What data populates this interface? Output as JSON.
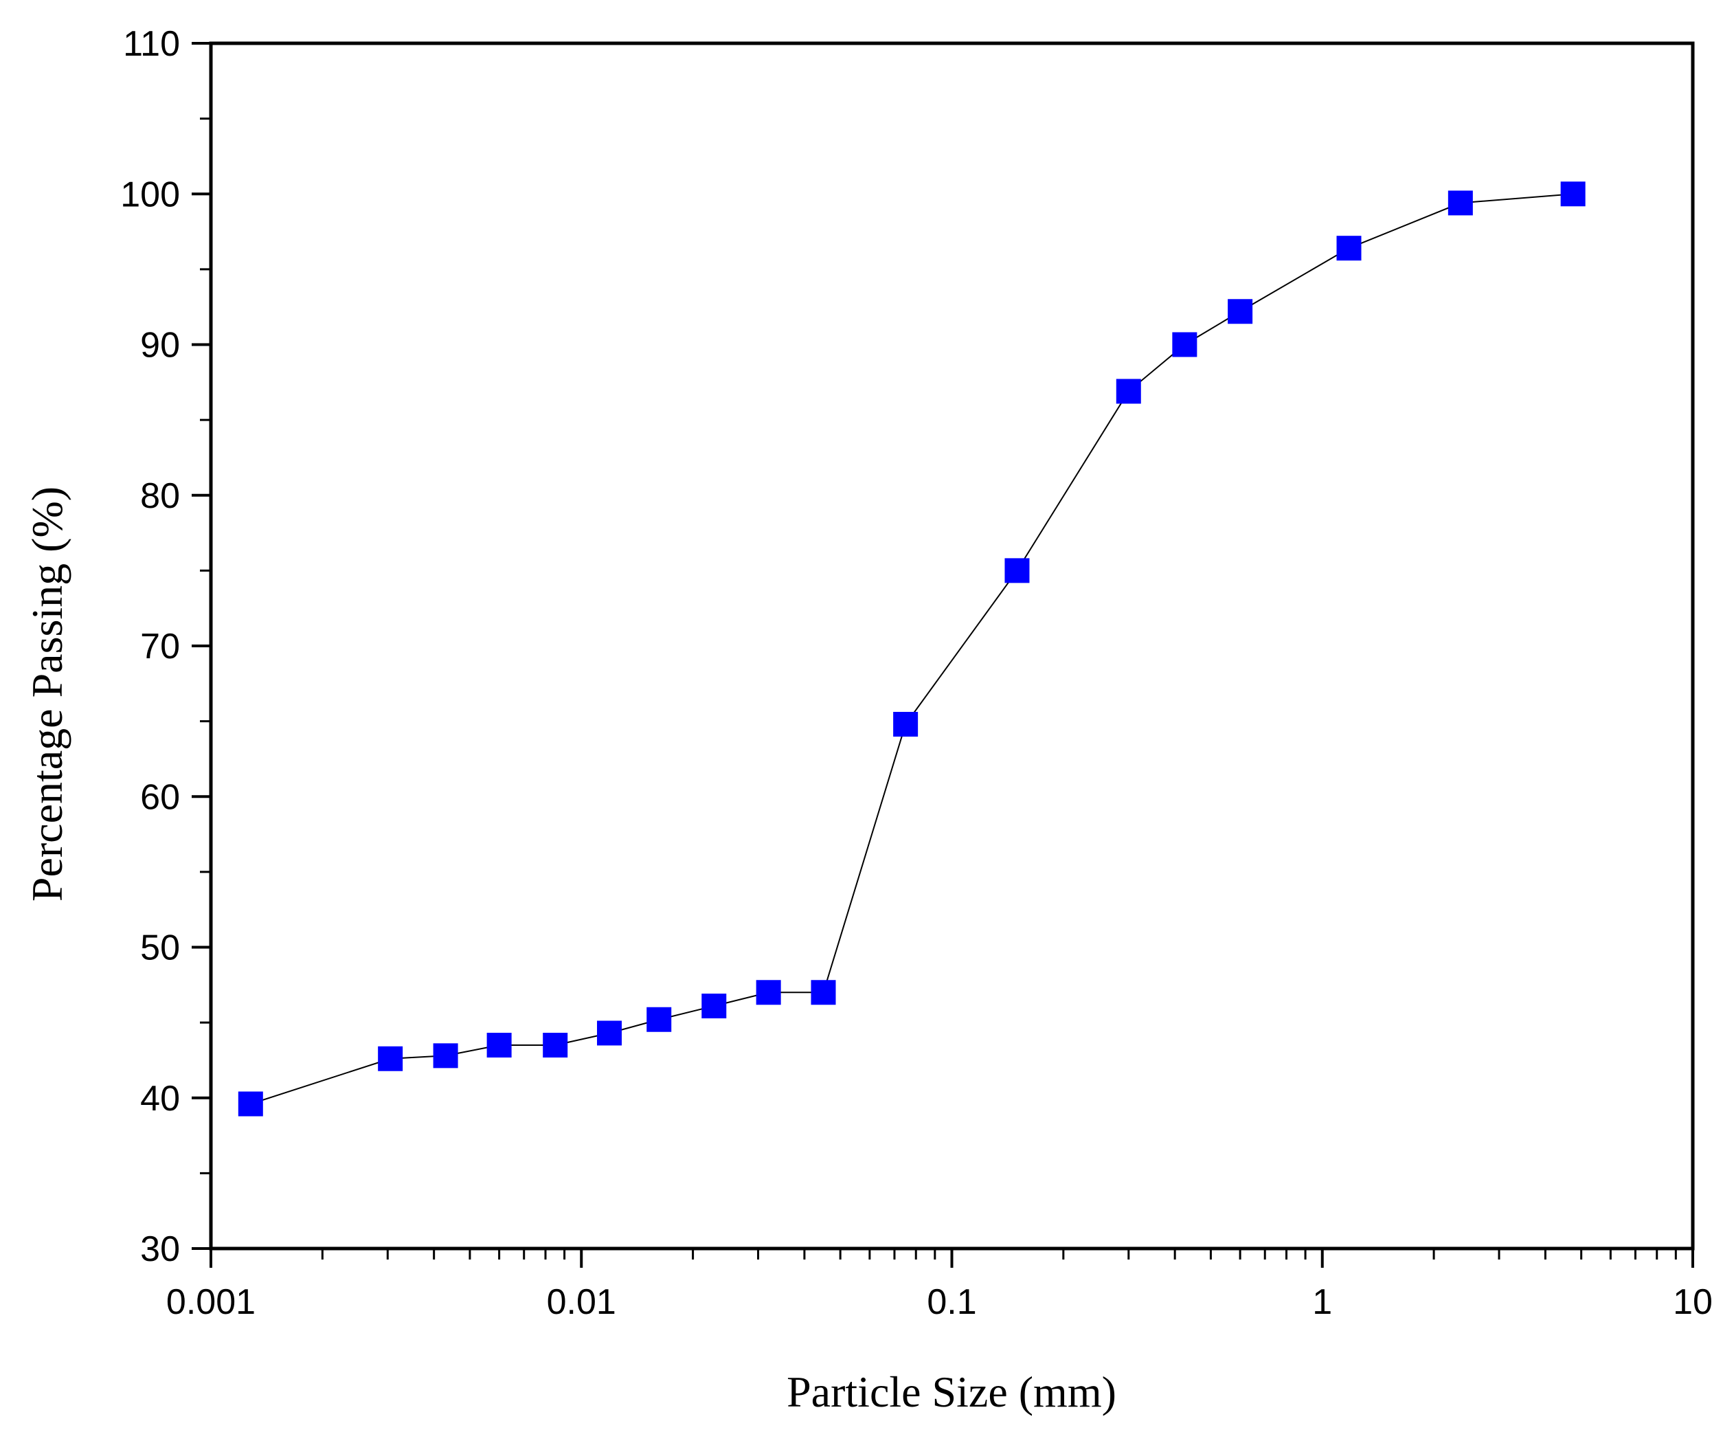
{
  "chart_data": {
    "type": "scatter",
    "title": "",
    "xlabel": "Particle Size (mm)",
    "ylabel": "Percentage Passing (%)",
    "xscale": "log",
    "xlim": [
      0.001,
      10
    ],
    "ylim": [
      30,
      110
    ],
    "x_ticks": [
      0.001,
      0.01,
      0.1,
      1,
      10
    ],
    "x_tick_labels": [
      "0.001",
      "0.01",
      "0.1",
      "1",
      "10"
    ],
    "y_ticks": [
      30,
      40,
      50,
      60,
      70,
      80,
      90,
      100,
      110
    ],
    "y_tick_labels": [
      "30",
      "40",
      "50",
      "60",
      "70",
      "80",
      "90",
      "100",
      "110"
    ],
    "grid": false,
    "marker_color": "#0000ff",
    "line_color": "#000000",
    "series": [
      {
        "name": "Percentage Passing",
        "x": [
          0.00128,
          0.00305,
          0.0043,
          0.006,
          0.0085,
          0.0119,
          0.0162,
          0.0228,
          0.032,
          0.045,
          0.075,
          0.15,
          0.3,
          0.425,
          0.6,
          1.18,
          2.36,
          4.75
        ],
        "y": [
          39.6,
          42.6,
          42.8,
          43.5,
          43.5,
          44.3,
          45.2,
          46.1,
          47.0,
          47.0,
          64.8,
          75.0,
          86.9,
          90.0,
          92.2,
          96.4,
          99.4,
          100.0
        ]
      }
    ]
  }
}
